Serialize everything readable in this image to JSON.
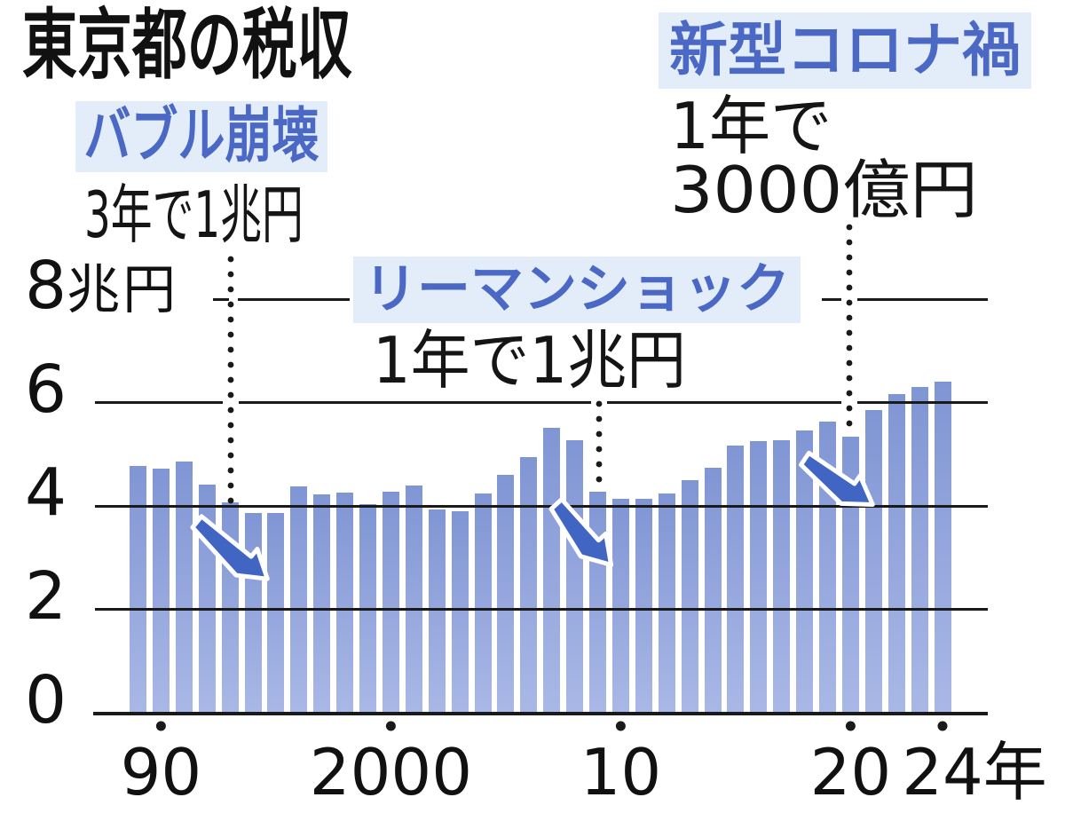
{
  "title": "東京都の税収",
  "annotations": {
    "bubble": {
      "label": "バブル崩壊",
      "note": "3年で1兆円",
      "target_year": 1994
    },
    "lehman": {
      "label": "リーマンショック",
      "note": "1年で1兆円",
      "target_year": 2009
    },
    "corona": {
      "label": "新型コロナ禍",
      "note_line1": "1年で",
      "note_line2": "3000億円",
      "target_year": 2020
    }
  },
  "colors": {
    "bar_top": "#8095d4",
    "bar_bottom": "#a9b8e6",
    "accent_blue": "#4a68c4",
    "label_bg": "#e2edf9",
    "arrow_blue": "#4165c3",
    "grid": "#1a1a1a",
    "text": "#111111"
  },
  "chart_data": {
    "type": "bar",
    "title": "東京都の税収",
    "ylabel": "兆円",
    "x": [
      1989,
      1990,
      1991,
      1992,
      1993,
      1994,
      1995,
      1996,
      1997,
      1998,
      1999,
      2000,
      2001,
      2002,
      2003,
      2004,
      2005,
      2006,
      2007,
      2008,
      2009,
      2010,
      2011,
      2012,
      2013,
      2014,
      2015,
      2016,
      2017,
      2018,
      2019,
      2020,
      2021,
      2022,
      2023,
      2024
    ],
    "values": [
      4.78,
      4.72,
      4.87,
      4.42,
      4.08,
      3.86,
      3.87,
      4.38,
      4.22,
      4.26,
      4.04,
      4.28,
      4.4,
      3.94,
      3.91,
      4.25,
      4.61,
      4.94,
      5.52,
      5.28,
      4.28,
      4.15,
      4.15,
      4.25,
      4.51,
      4.75,
      5.18,
      5.26,
      5.28,
      5.47,
      5.64,
      5.35,
      5.86,
      6.17,
      6.31,
      6.41
    ],
    "ylim": [
      0,
      8.6
    ],
    "grid": "horizontal",
    "legend": "none",
    "yticks": [
      {
        "value": 0,
        "label": "0"
      },
      {
        "value": 2,
        "label": "2"
      },
      {
        "value": 4,
        "label": "4"
      },
      {
        "value": 6,
        "label": "6"
      },
      {
        "value": 8,
        "label": "8",
        "suffix": "兆円"
      }
    ],
    "xticks": [
      {
        "year": 1990,
        "label": "90"
      },
      {
        "year": 2000,
        "label": "2000"
      },
      {
        "year": 2010,
        "label": "10"
      },
      {
        "year": 2020,
        "label": "20"
      },
      {
        "year": 2024,
        "label": "24年"
      }
    ]
  }
}
